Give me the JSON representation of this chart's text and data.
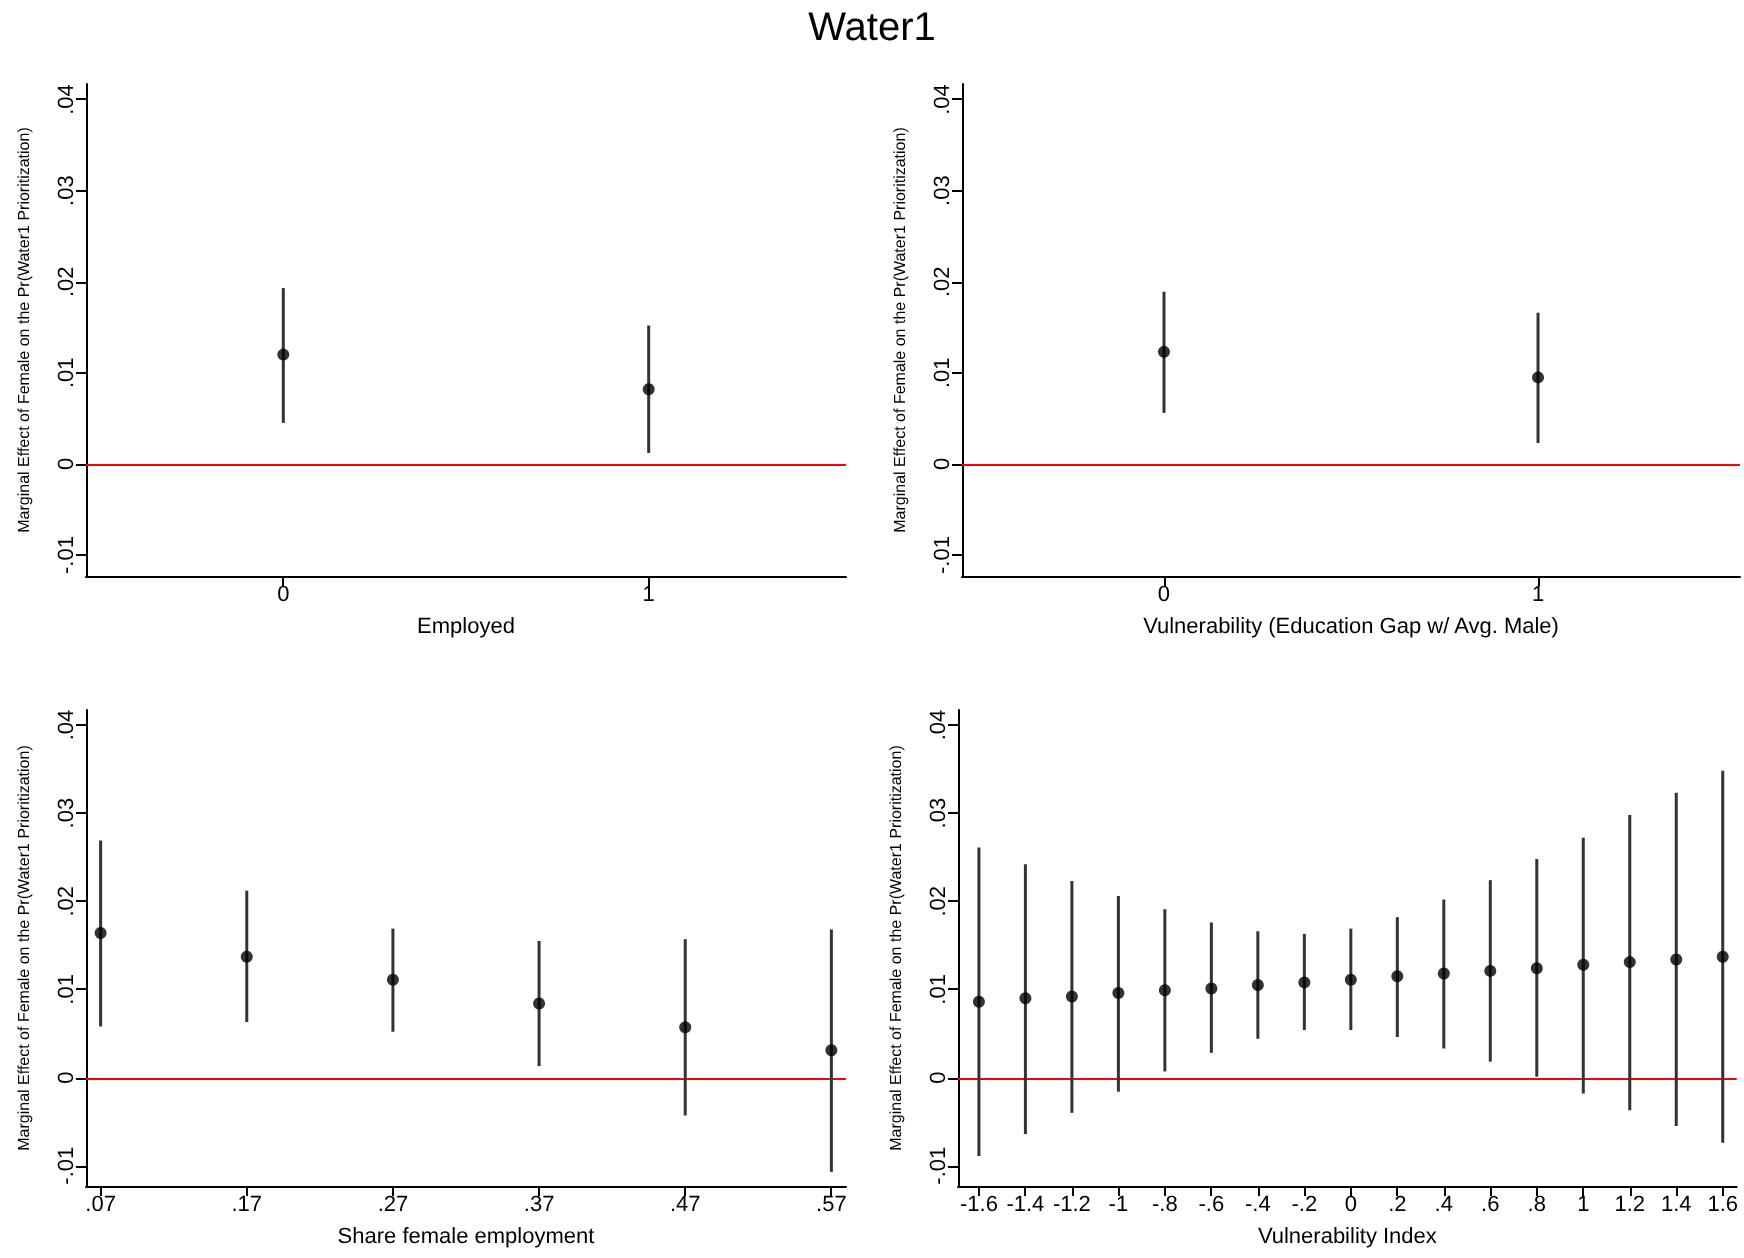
{
  "chart_data": [
    {
      "type": "scatter",
      "title": "Water1",
      "xlabel": "Employed",
      "ylabel": "Marginal Effect of Female on the Pr(Water1 Prioritization)",
      "color": "#000000",
      "marker": "circle",
      "x": [
        0,
        1
      ],
      "values": [
        0.012,
        0.0082
      ],
      "errors": [
        [
          0.0045,
          0.0193
        ],
        [
          0.0012,
          0.0152
        ]
      ],
      "xlim": [
        -0.54,
        1.54
      ],
      "xticks": [
        0,
        1
      ],
      "ylim": [
        -0.0123,
        0.0417
      ],
      "yticks": [
        {
          "value": -0.01,
          "label": "-.01"
        },
        {
          "value": 0,
          "label": "0"
        },
        {
          "value": 0.01,
          "label": ".01"
        },
        {
          "value": 0.02,
          "label": ".02"
        },
        {
          "value": 0.03,
          "label": ".03"
        },
        {
          "value": 0.04,
          "label": ".04"
        }
      ],
      "ref_lines": [
        {
          "axis": "y",
          "value": 0,
          "color": "#ff0000"
        }
      ]
    },
    {
      "type": "scatter",
      "xlabel": "Vulnerability (Education Gap w/ Avg. Male)",
      "ylabel": "Marginal Effect of Female on the Pr(Water1 Prioritization)",
      "color": "#000000",
      "marker": "circle",
      "x": [
        0,
        1
      ],
      "values": [
        0.0123,
        0.0095
      ],
      "errors": [
        [
          0.0056,
          0.0189
        ],
        [
          0.0023,
          0.0166
        ]
      ],
      "xlim": [
        -0.54,
        1.54
      ],
      "xticks": [
        0,
        1
      ],
      "ylim": [
        -0.0123,
        0.0417
      ],
      "yticks": [
        {
          "value": -0.01,
          "label": "-.01"
        },
        {
          "value": 0,
          "label": "0"
        },
        {
          "value": 0.01,
          "label": ".01"
        },
        {
          "value": 0.02,
          "label": ".02"
        },
        {
          "value": 0.03,
          "label": ".03"
        },
        {
          "value": 0.04,
          "label": ".04"
        }
      ],
      "ref_lines": [
        {
          "axis": "y",
          "value": 0,
          "color": "#ff0000"
        }
      ]
    },
    {
      "type": "scatter",
      "xlabel": "Share female employment",
      "ylabel": "Marginal Effect of Female on the Pr(Water1 Prioritization)",
      "color": "#000000",
      "marker": "circle",
      "x": [
        0.07,
        0.17,
        0.27,
        0.37,
        0.47,
        0.57
      ],
      "values": [
        0.0164,
        0.0137,
        0.0111,
        0.0084,
        0.0057,
        0.0031
      ],
      "errors": [
        [
          0.0058,
          0.0269
        ],
        [
          0.0063,
          0.0212
        ],
        [
          0.0052,
          0.0169
        ],
        [
          0.0013,
          0.0155
        ],
        [
          -0.0043,
          0.0157
        ],
        [
          -0.0107,
          0.0168
        ]
      ],
      "xlim": [
        0.06,
        0.58
      ],
      "xticks": [
        {
          "value": 0.07,
          "label": ".07"
        },
        {
          "value": 0.17,
          "label": ".17"
        },
        {
          "value": 0.27,
          "label": ".27"
        },
        {
          "value": 0.37,
          "label": ".37"
        },
        {
          "value": 0.47,
          "label": ".47"
        },
        {
          "value": 0.57,
          "label": ".57"
        }
      ],
      "ylim": [
        -0.0123,
        0.0417
      ],
      "yticks": [
        {
          "value": -0.01,
          "label": "-.01"
        },
        {
          "value": 0,
          "label": "0"
        },
        {
          "value": 0.01,
          "label": ".01"
        },
        {
          "value": 0.02,
          "label": ".02"
        },
        {
          "value": 0.03,
          "label": ".03"
        },
        {
          "value": 0.04,
          "label": ".04"
        }
      ],
      "ref_lines": [
        {
          "axis": "y",
          "value": 0,
          "color": "#ff0000"
        }
      ]
    },
    {
      "type": "scatter",
      "xlabel": "Vulnerability Index",
      "ylabel": "Marginal Effect of Female on the Pr(Water1 Prioritization)",
      "color": "#000000",
      "marker": "circle",
      "x": [
        -1.6,
        -1.4,
        -1.2,
        -1,
        -0.8,
        -0.6,
        -0.4,
        -0.2,
        0,
        0.2,
        0.4,
        0.6,
        0.8,
        1,
        1.2,
        1.4,
        1.6
      ],
      "values": [
        0.0086,
        0.009,
        0.0092,
        0.0096,
        0.0099,
        0.0101,
        0.0105,
        0.0108,
        0.0111,
        0.0115,
        0.0118,
        0.0121,
        0.0124,
        0.0128,
        0.0131,
        0.0134,
        0.0137
      ],
      "errors": [
        [
          -0.0089,
          0.0261
        ],
        [
          -0.0064,
          0.0242
        ],
        [
          -0.004,
          0.0223
        ],
        [
          -0.0016,
          0.0206
        ],
        [
          0.0007,
          0.0191
        ],
        [
          0.0028,
          0.0176
        ],
        [
          0.0044,
          0.0166
        ],
        [
          0.0054,
          0.0163
        ],
        [
          0.0054,
          0.0169
        ],
        [
          0.0046,
          0.0182
        ],
        [
          0.0033,
          0.0202
        ],
        [
          0.0018,
          0.0224
        ],
        [
          0.0001,
          0.0248
        ],
        [
          -0.0018,
          0.0272
        ],
        [
          -0.0037,
          0.0298
        ],
        [
          -0.0055,
          0.0323
        ],
        [
          -0.0074,
          0.0348
        ]
      ],
      "xlim": [
        -1.69,
        1.66
      ],
      "xticks": [
        {
          "value": -1.6,
          "label": "-1.6"
        },
        {
          "value": -1.4,
          "label": "-1.4"
        },
        {
          "value": -1.2,
          "label": "-1.2"
        },
        -1,
        {
          "value": -0.8,
          "label": "-.8"
        },
        {
          "value": -0.6,
          "label": "-.6"
        },
        {
          "value": -0.4,
          "label": "-.4"
        },
        {
          "value": -0.2,
          "label": "-.2"
        },
        0,
        {
          "value": 0.2,
          "label": ".2"
        },
        {
          "value": 0.4,
          "label": ".4"
        },
        {
          "value": 0.6,
          "label": ".6"
        },
        {
          "value": 0.8,
          "label": ".8"
        },
        1,
        {
          "value": 1.2,
          "label": "1.2"
        },
        {
          "value": 1.4,
          "label": "1.4"
        },
        {
          "value": 1.6,
          "label": "1.6"
        }
      ],
      "ylim": [
        -0.0123,
        0.0417
      ],
      "yticks": [
        {
          "value": -0.01,
          "label": "-.01"
        },
        {
          "value": 0,
          "label": "0"
        },
        {
          "value": 0.01,
          "label": ".01"
        },
        {
          "value": 0.02,
          "label": ".02"
        },
        {
          "value": 0.03,
          "label": ".03"
        },
        {
          "value": 0.04,
          "label": ".04"
        }
      ],
      "ref_lines": [
        {
          "axis": "y",
          "value": 0,
          "color": "#ff0000"
        }
      ]
    }
  ]
}
